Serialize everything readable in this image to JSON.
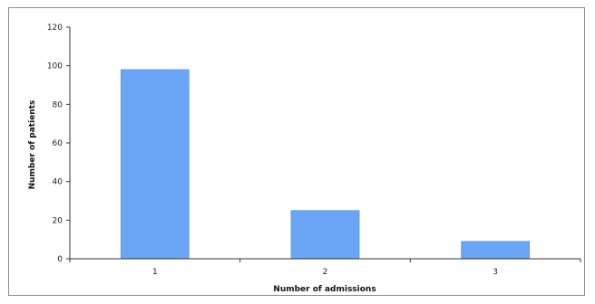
{
  "chart_data": {
    "type": "bar",
    "categories": [
      "1",
      "2",
      "3"
    ],
    "values": [
      98,
      25,
      9
    ],
    "title": "",
    "xlabel": "Number of admissions",
    "ylabel": "Number of patients",
    "ylim": [
      0,
      120
    ],
    "yticks": [
      "0",
      "20",
      "40",
      "60",
      "80",
      "100",
      "120"
    ],
    "grid": false,
    "bar_color": "#6aa5f6",
    "bar_edge_color": "#4f89db"
  }
}
